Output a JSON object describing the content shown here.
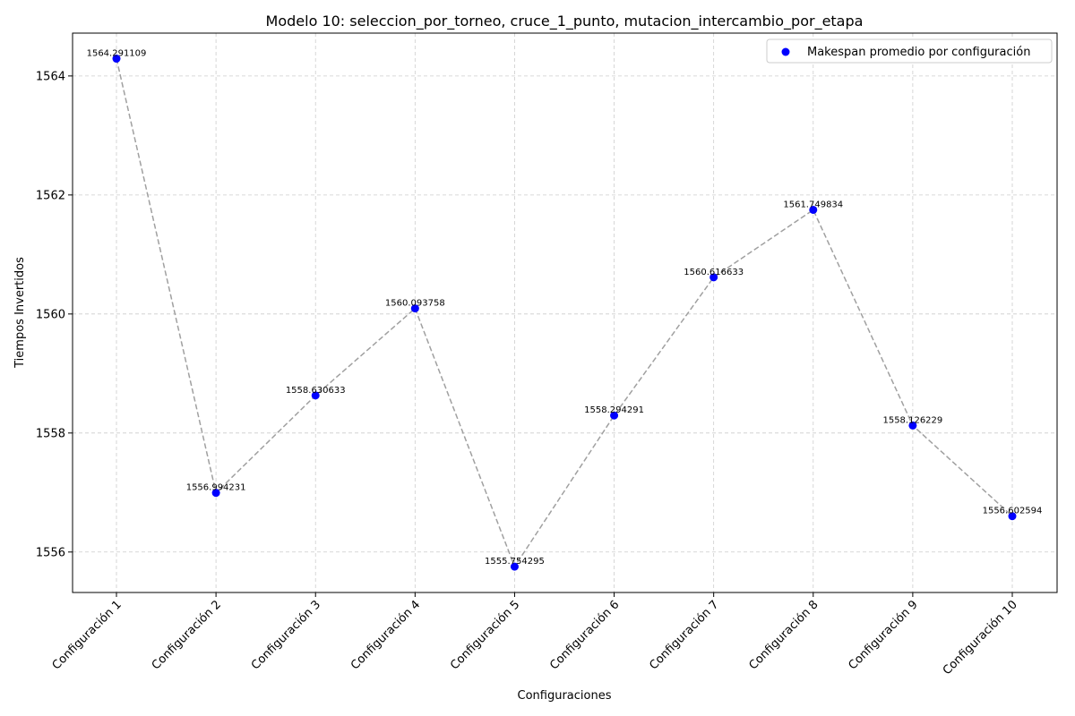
{
  "chart_data": {
    "type": "scatter",
    "title": "Modelo 10: seleccion_por_torneo, cruce_1_punto, mutacion_intercambio_por_etapa",
    "xlabel": "Configuraciones",
    "ylabel": "Tiempos Invertidos",
    "categories": [
      "Configuración 1",
      "Configuración 2",
      "Configuración 3",
      "Configuración 4",
      "Configuración 5",
      "Configuración 6",
      "Configuración 7",
      "Configuración 8",
      "Configuración 9",
      "Configuración 10"
    ],
    "values": [
      1564.291109,
      1556.994231,
      1558.630633,
      1560.093758,
      1555.754295,
      1558.294291,
      1560.616633,
      1561.749834,
      1558.126229,
      1556.602594
    ],
    "data_labels": [
      "1564.291109",
      "1556.994231",
      "1558.630633",
      "1560.093758",
      "1555.754295",
      "1558.294291",
      "1560.616633",
      "1561.749834",
      "1558.126229",
      "1556.602594"
    ],
    "ylim": [
      1555.32,
      1564.72
    ],
    "yticks": [
      1556,
      1558,
      1560,
      1562,
      1564
    ],
    "ytick_labels": [
      "1556",
      "1558",
      "1560",
      "1562",
      "1564"
    ],
    "grid": true,
    "legend": {
      "label": "Makespan promedio por configuración",
      "placement": "top-right"
    },
    "colors": {
      "points": "#0000ff",
      "line": "#a0a0a0",
      "grid": "#cccccc"
    }
  }
}
